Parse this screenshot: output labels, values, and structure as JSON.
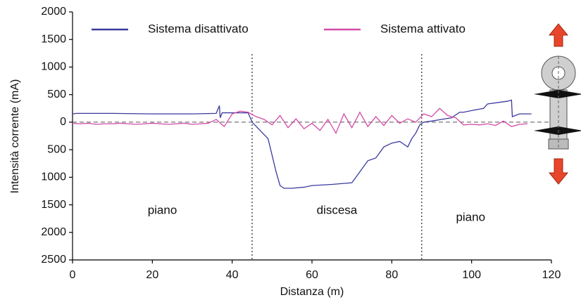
{
  "chart_data": {
    "type": "line",
    "xlabel": "Distanza (m)",
    "ylabel": "Intensità corrente (mA)",
    "xlim": [
      0,
      120
    ],
    "xticks": [
      0,
      20,
      40,
      60,
      80,
      100,
      120
    ],
    "ylim": [
      -2500,
      2000
    ],
    "yticks": [
      2000,
      1500,
      1000,
      500,
      0,
      {
        "value": -500,
        "label": "500"
      },
      {
        "value": -1000,
        "label": "1000"
      },
      {
        "value": -1500,
        "label": "1500"
      },
      {
        "value": -2000,
        "label": "2000"
      },
      {
        "value": -2500,
        "label": "2500"
      }
    ],
    "vlines": [
      45,
      87.5
    ],
    "annotations": [
      "piano",
      "discesa",
      "piano"
    ],
    "legend": "top",
    "series": [
      {
        "name": "Sistema disattivato",
        "color": "#3a3a9e",
        "x": [
          0,
          1,
          10,
          20,
          30,
          36,
          36.8,
          37,
          37.5,
          40,
          44,
          45,
          47,
          49,
          50,
          51,
          52,
          53,
          55,
          58,
          60,
          65,
          70,
          72,
          74,
          76,
          78,
          80,
          82,
          83,
          84,
          85,
          86,
          87,
          88,
          90,
          95,
          97,
          98,
          100,
          103,
          104,
          109,
          110,
          110.2,
          112,
          115
        ],
        "values": [
          150,
          160,
          160,
          150,
          150,
          160,
          300,
          80,
          170,
          170,
          170,
          0,
          -150,
          -300,
          -600,
          -900,
          -1150,
          -1200,
          -1200,
          -1180,
          -1150,
          -1130,
          -1100,
          -900,
          -700,
          -650,
          -450,
          -380,
          -350,
          -400,
          -450,
          -300,
          -200,
          -50,
          0,
          20,
          80,
          180,
          180,
          210,
          250,
          330,
          380,
          400,
          100,
          150,
          150
        ]
      },
      {
        "name": "Sistema attivato",
        "color": "#d34aa8",
        "x": [
          0,
          2,
          4,
          6,
          8,
          10,
          12,
          14,
          16,
          18,
          20,
          22,
          24,
          26,
          28,
          30,
          32,
          34,
          36,
          38,
          40,
          42,
          44,
          46,
          48,
          50,
          52,
          54,
          56,
          58,
          60,
          62,
          64,
          66,
          68,
          70,
          72,
          74,
          76,
          78,
          80,
          82,
          84,
          86,
          88,
          90,
          92,
          94,
          96,
          98,
          100,
          102,
          104,
          106,
          108,
          110,
          112,
          114
        ],
        "values": [
          -20,
          -30,
          -20,
          -40,
          -30,
          -30,
          -20,
          -30,
          -40,
          -30,
          -20,
          -30,
          -40,
          -30,
          -20,
          -40,
          -30,
          -20,
          50,
          -80,
          150,
          200,
          180,
          100,
          50,
          -50,
          120,
          -100,
          60,
          -120,
          -20,
          -150,
          50,
          -200,
          150,
          -100,
          180,
          -80,
          100,
          -60,
          120,
          -20,
          60,
          0,
          150,
          100,
          250,
          120,
          80,
          -50,
          -40,
          -50,
          -30,
          -60,
          20,
          -80,
          -40,
          -30
        ]
      }
    ]
  }
}
